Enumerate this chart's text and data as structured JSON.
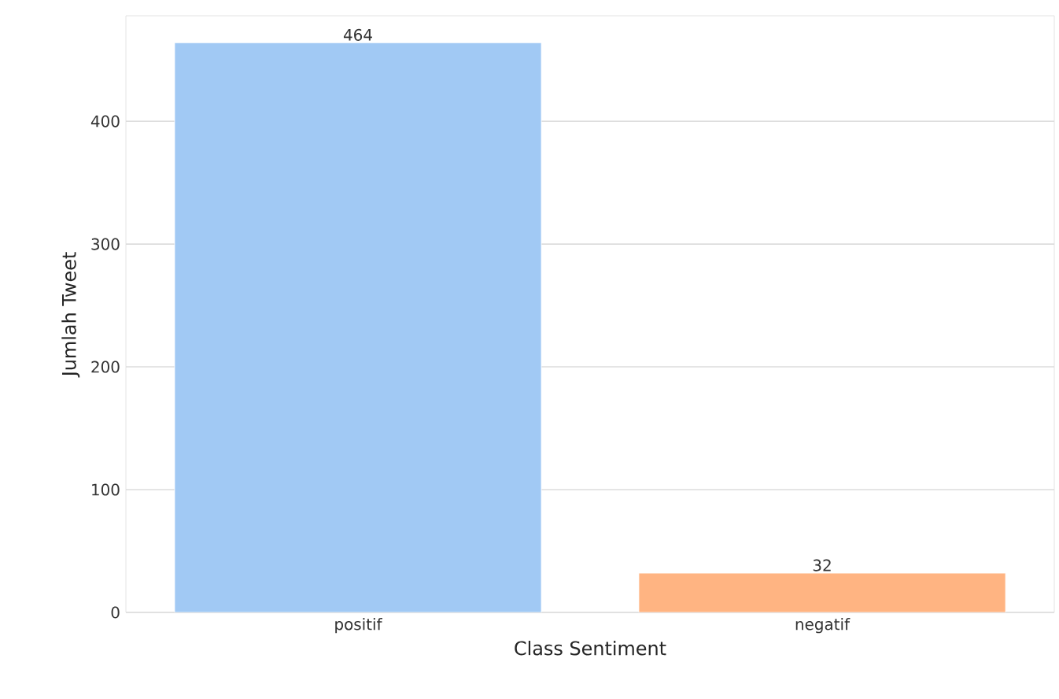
{
  "chart_data": {
    "type": "bar",
    "xlabel": "Class Sentiment",
    "ylabel": "Jumlah Tweet",
    "categories": [
      "positif",
      "negatif"
    ],
    "values": [
      464,
      32
    ],
    "colors": [
      "#a1c9f4",
      "#ffb482"
    ],
    "ylim": [
      0,
      486
    ],
    "yticks": [
      0,
      100,
      200,
      300,
      400
    ],
    "grid": "y",
    "data_labels": true
  }
}
